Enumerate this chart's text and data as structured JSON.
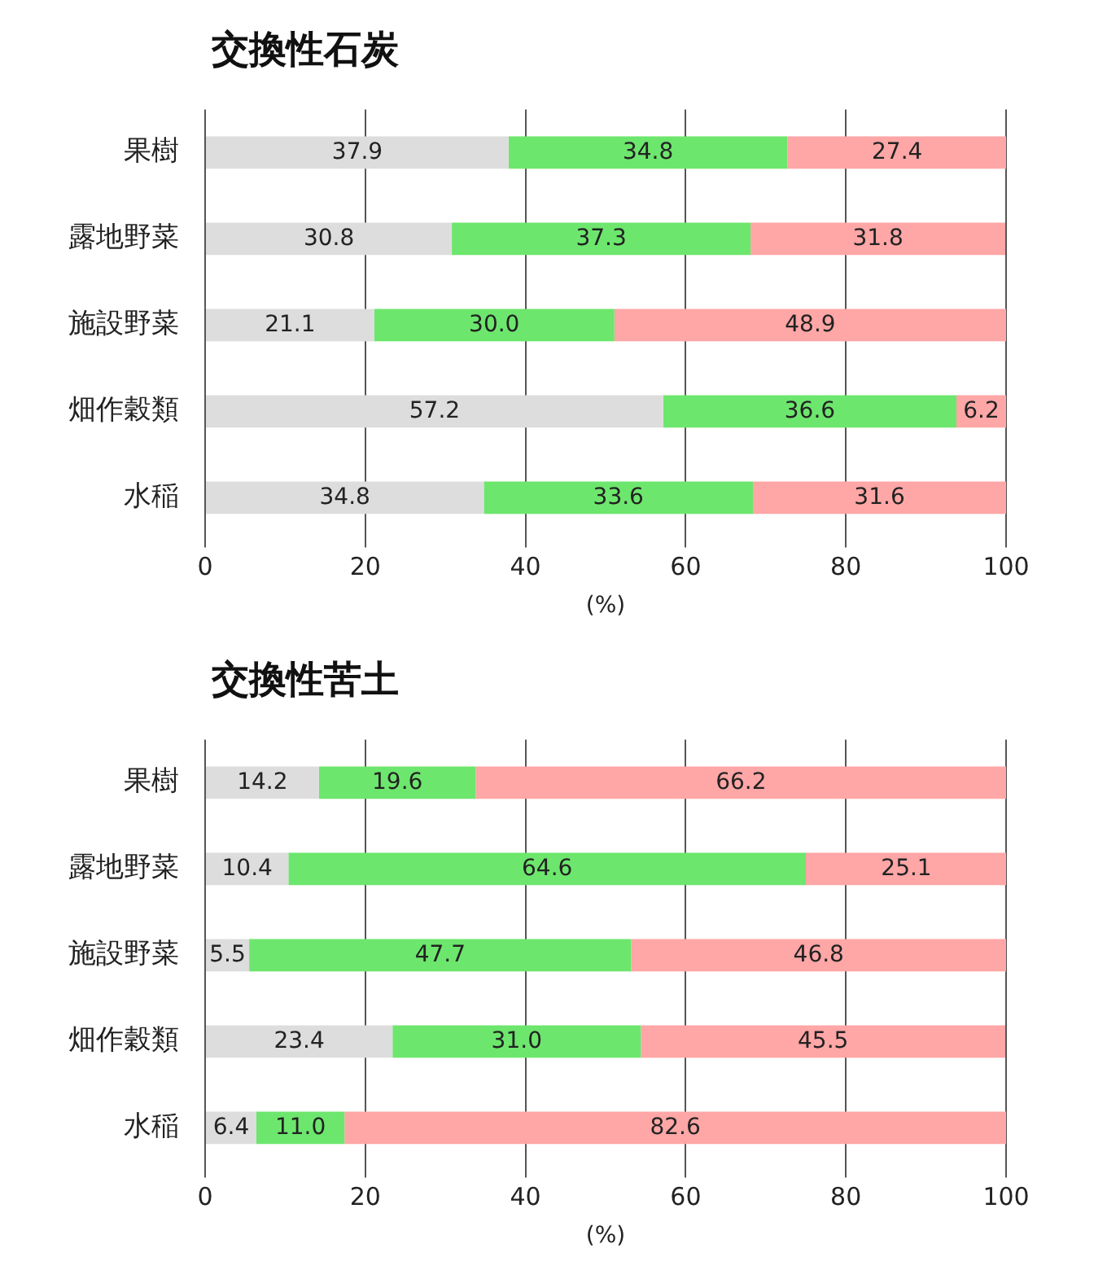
{
  "chart_data": [
    {
      "type": "bar",
      "title": "交換性石炭",
      "orientation": "horizontal",
      "stacked": true,
      "categories": [
        "果樹",
        "露地野菜",
        "施設野菜",
        "畑作穀類",
        "水稲"
      ],
      "series": [
        {
          "color": "#dddddd",
          "values": [
            37.9,
            30.8,
            21.1,
            57.2,
            34.8
          ],
          "value_labels": [
            "37.9",
            "30.8",
            "21.1",
            "57.2",
            "34.8"
          ]
        },
        {
          "color": "#6de66d",
          "values": [
            34.8,
            37.3,
            30.0,
            36.6,
            33.6
          ],
          "value_labels": [
            "34.8",
            "37.3",
            "30.0",
            "36.6",
            "33.6"
          ]
        },
        {
          "color": "#ffa6a6",
          "values": [
            27.4,
            31.8,
            48.9,
            6.2,
            31.6
          ],
          "value_labels": [
            "27.4",
            "31.8",
            "48.9",
            "6.2",
            "31.6"
          ]
        }
      ],
      "xlim": [
        0,
        100
      ],
      "xticks": [
        0,
        20,
        40,
        60,
        80,
        100
      ],
      "xlabel": "(%)",
      "grid": "x",
      "legend": false
    },
    {
      "type": "bar",
      "title": "交換性苦土",
      "orientation": "horizontal",
      "stacked": true,
      "categories": [
        "果樹",
        "露地野菜",
        "施設野菜",
        "畑作穀類",
        "水稲"
      ],
      "series": [
        {
          "color": "#dddddd",
          "values": [
            14.2,
            10.4,
            5.5,
            23.4,
            6.4
          ],
          "value_labels": [
            "14.2",
            "10.4",
            "5.5",
            "23.4",
            "6.4"
          ]
        },
        {
          "color": "#6de66d",
          "values": [
            19.6,
            64.6,
            47.7,
            31.0,
            11.0
          ],
          "value_labels": [
            "19.6",
            "64.6",
            "47.7",
            "31.0",
            "11.0"
          ]
        },
        {
          "color": "#ffa6a6",
          "values": [
            66.2,
            25.1,
            46.8,
            45.5,
            82.6
          ],
          "value_labels": [
            "66.2",
            "25.1",
            "46.8",
            "45.5",
            "82.6"
          ]
        }
      ],
      "xlim": [
        0,
        100
      ],
      "xticks": [
        0,
        20,
        40,
        60,
        80,
        100
      ],
      "xlabel": "(%)",
      "grid": "x",
      "legend": false
    }
  ]
}
